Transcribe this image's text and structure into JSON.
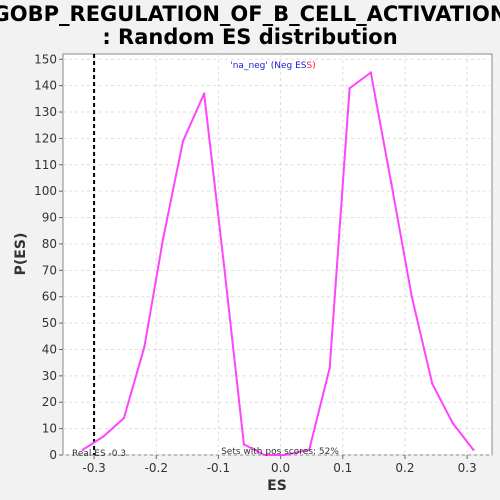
{
  "chart_data": {
    "type": "line",
    "title_line1": "GOBP_REGULATION_OF_B_CELL_ACTIVATION",
    "title_line2": ": Random ES distribution",
    "xlabel": "ES",
    "ylabel": "P(ES)",
    "xlim": [
      -0.35,
      0.34
    ],
    "ylim": [
      0,
      152
    ],
    "x_ticks": [
      -0.3,
      -0.2,
      -0.1,
      0.0,
      0.1,
      0.2,
      0.3
    ],
    "x_tick_labels": [
      "-0.3",
      "-0.2",
      "-0.1",
      "0.0",
      "0.1",
      "0.2",
      "0.3"
    ],
    "y_ticks": [
      0,
      10,
      20,
      30,
      40,
      50,
      60,
      70,
      80,
      90,
      100,
      110,
      120,
      130,
      140,
      150
    ],
    "grid": true,
    "series": [
      {
        "name": "'na_neg' (Neg ES)",
        "name_main": "'na_neg' (Neg ES",
        "name_tail": "S)",
        "color": "#ff44ff",
        "name_color": "#1a1acc",
        "tail_color": "#ff2222",
        "x": [
          -0.318,
          -0.285,
          -0.252,
          -0.219,
          -0.189,
          -0.157,
          -0.123,
          -0.091,
          -0.059,
          -0.026,
          0.007,
          0.046,
          0.079,
          0.111,
          0.145,
          0.178,
          0.211,
          0.244,
          0.277,
          0.31
        ],
        "y": [
          2,
          7,
          14,
          41,
          82,
          119,
          137,
          72,
          4,
          0,
          0,
          2,
          33,
          139,
          145,
          103,
          60,
          27,
          12,
          2
        ]
      }
    ],
    "real_es": {
      "value": -0.3,
      "label": "Real ES -0.3",
      "color": "#000000"
    },
    "annotation": "Sets with pos scores: 52%"
  }
}
